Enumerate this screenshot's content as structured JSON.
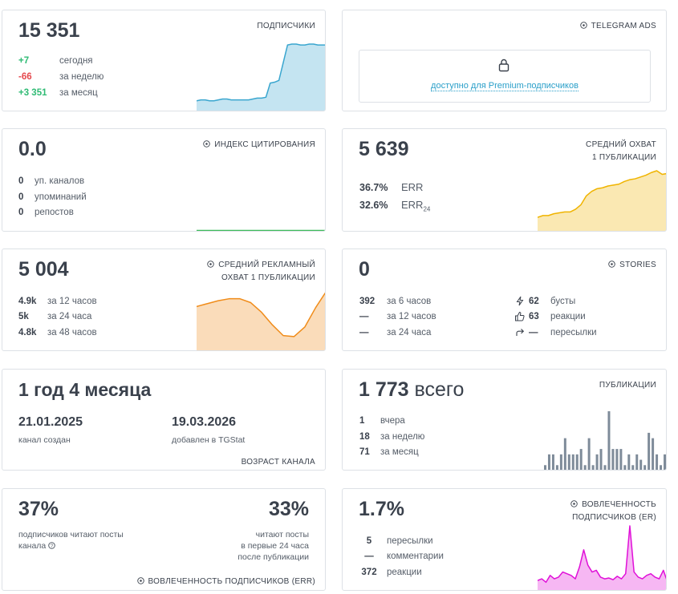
{
  "subscribers": {
    "value": "15 351",
    "title": "ПОДПИСЧИКИ",
    "stats": [
      {
        "value": "+7",
        "label": "сегодня"
      },
      {
        "value": "-66",
        "label": "за неделю"
      },
      {
        "value": "+3 351",
        "label": "за месяц"
      }
    ],
    "chart": {
      "type": "area",
      "color": "#3aa6cf",
      "values": [
        12,
        13,
        13,
        12,
        12,
        13,
        14,
        14,
        13,
        13,
        13,
        13,
        13,
        14,
        15,
        15,
        16,
        32,
        33,
        35,
        55,
        75,
        76,
        76,
        75,
        75,
        76,
        76,
        75,
        75,
        75
      ]
    }
  },
  "ads": {
    "title": "TELEGRAM ADS",
    "note": "доступно для Premium-подписчиков"
  },
  "citation": {
    "value": "0.0",
    "title": "ИНДЕКС ЦИТИРОВАНИЯ",
    "stats": [
      {
        "value": "0",
        "label": "уп. каналов"
      },
      {
        "value": "0",
        "label": "упоминаний"
      },
      {
        "value": "0",
        "label": "репостов"
      }
    ],
    "chart": {
      "type": "line",
      "color": "#3dbb5a",
      "values": [
        0,
        0,
        0,
        0,
        0,
        0,
        0,
        0,
        0,
        0,
        0,
        0
      ]
    }
  },
  "reach": {
    "value": "5 639",
    "title": [
      "СРЕДНИЙ ОХВАТ",
      "1 ПУБЛИКАЦИИ"
    ],
    "stats": [
      {
        "value": "36.7%",
        "label": "ERR"
      },
      {
        "value": "32.6%",
        "label": "ERR",
        "sub": "24"
      }
    ],
    "chart": {
      "type": "area",
      "color": "#f0b400",
      "values": [
        16,
        18,
        18,
        20,
        21,
        22,
        22,
        25,
        30,
        40,
        45,
        48,
        49,
        51,
        52,
        53,
        56,
        58,
        59,
        61,
        63,
        66,
        68,
        64,
        65
      ]
    }
  },
  "ad_reach": {
    "value": "5 004",
    "title": [
      "СРЕДНИЙ РЕКЛАМНЫЙ",
      "ОХВАТ 1 ПУБЛИКАЦИИ"
    ],
    "stats": [
      {
        "value": "4.9k",
        "label": "за 12 часов"
      },
      {
        "value": "5k",
        "label": "за 24 часа"
      },
      {
        "value": "4.8k",
        "label": "за 48 часов"
      }
    ],
    "chart": {
      "type": "area",
      "color": "#f08c1a",
      "values": [
        46,
        49,
        52,
        54,
        54,
        50,
        40,
        27,
        16,
        15,
        25,
        45,
        62
      ]
    }
  },
  "stories": {
    "value": "0",
    "title": "STORIES",
    "stats": [
      {
        "value": "392",
        "label": "за 6 часов"
      },
      {
        "value": "—",
        "label": "за 12 часов"
      },
      {
        "value": "—",
        "label": "за 24 часа"
      }
    ],
    "extras": [
      {
        "value": "62",
        "label": "бусты"
      },
      {
        "value": "63",
        "label": "реакции"
      },
      {
        "value": "—",
        "label": "пересылки"
      }
    ]
  },
  "age": {
    "value": "1 год 4 месяца",
    "dates": [
      {
        "value": "21.01.2025",
        "label": "канал создан"
      },
      {
        "value": "19.03.2026",
        "label": "добавлен в TGStat"
      }
    ],
    "footer": "ВОЗРАСТ КАНАЛА"
  },
  "posts": {
    "value": "1 773",
    "unit": "всего",
    "title": "ПУБЛИКАЦИИ",
    "stats": [
      {
        "value": "1",
        "label": "вчера"
      },
      {
        "value": "18",
        "label": "за неделю"
      },
      {
        "value": "71",
        "label": "за месяц"
      }
    ],
    "chart": {
      "type": "bar",
      "color": "#7e8b99",
      "values": [
        1,
        3,
        3,
        1,
        3,
        6,
        3,
        3,
        3,
        4,
        1,
        6,
        1,
        3,
        4,
        1,
        11,
        4,
        4,
        4,
        1,
        3,
        1,
        3,
        2,
        1,
        7,
        6,
        3,
        1,
        3
      ]
    }
  },
  "err": {
    "values": [
      {
        "value": "37%",
        "lines": [
          "подписчиков читают посты",
          "канала"
        ]
      },
      {
        "value": "33%",
        "lines": [
          "читают посты",
          "в первые 24 часа",
          "после публикации"
        ]
      }
    ],
    "footer": "ВОВЛЕЧЕННОСТЬ ПОДПИСЧИКОВ (ERR)"
  },
  "er": {
    "value": "1.7%",
    "title": [
      "ВОВЛЕЧЕННОСТЬ",
      "ПОДПИСЧИКОВ (ER)"
    ],
    "stats": [
      {
        "value": "5",
        "label": "пересылки"
      },
      {
        "value": "—",
        "label": "комментарии"
      },
      {
        "value": "372",
        "label": "реакции"
      }
    ],
    "chart": {
      "type": "area",
      "color": "#e010d8",
      "values": [
        12,
        14,
        10,
        18,
        14,
        16,
        22,
        20,
        18,
        14,
        28,
        48,
        30,
        22,
        24,
        16,
        14,
        15,
        13,
        17,
        14,
        20,
        76,
        22,
        16,
        14,
        18,
        20,
        16,
        14,
        24,
        10
      ]
    }
  }
}
